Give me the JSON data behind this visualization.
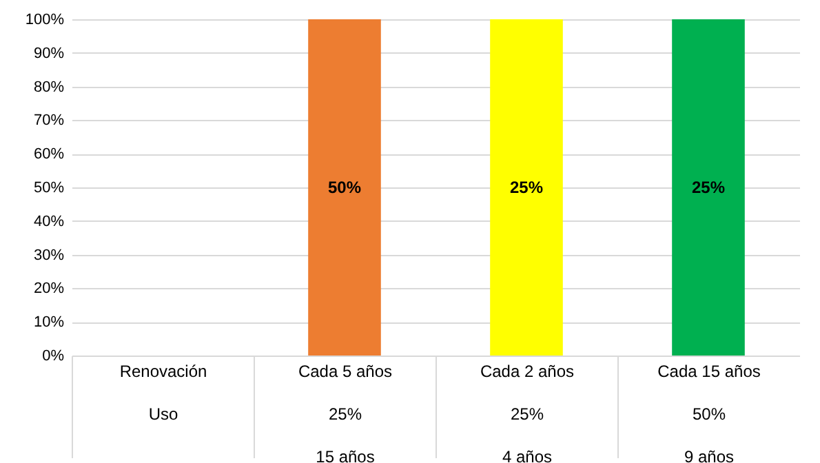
{
  "chart_data": {
    "type": "bar",
    "categories": [
      "Renovación\n\nUso",
      "Cada 5 años\n25%\n15 años",
      "Cada 2 años\n25%\n4 años",
      "Cada 15 años\n50%\n9 años"
    ],
    "values": [
      null,
      100,
      100,
      100
    ],
    "colors": [
      "#ed7d31",
      "#ed7d31",
      "#ffff00",
      "#00b050"
    ],
    "annotations": [
      "50%",
      "25%",
      "25%"
    ],
    "ylim": [
      0,
      100
    ],
    "yticks": [
      {
        "value": 0,
        "label": "0%"
      },
      {
        "value": 10,
        "label": "10%"
      },
      {
        "value": 20,
        "label": "20%"
      },
      {
        "value": 30,
        "label": "30%"
      },
      {
        "value": 40,
        "label": "40%"
      },
      {
        "value": 50,
        "label": "50%"
      },
      {
        "value": 60,
        "label": "60%"
      },
      {
        "value": 70,
        "label": "70%"
      },
      {
        "value": 80,
        "label": "80%"
      },
      {
        "value": 90,
        "label": "90%"
      },
      {
        "value": 100,
        "label": "100%"
      }
    ],
    "grid": true
  }
}
